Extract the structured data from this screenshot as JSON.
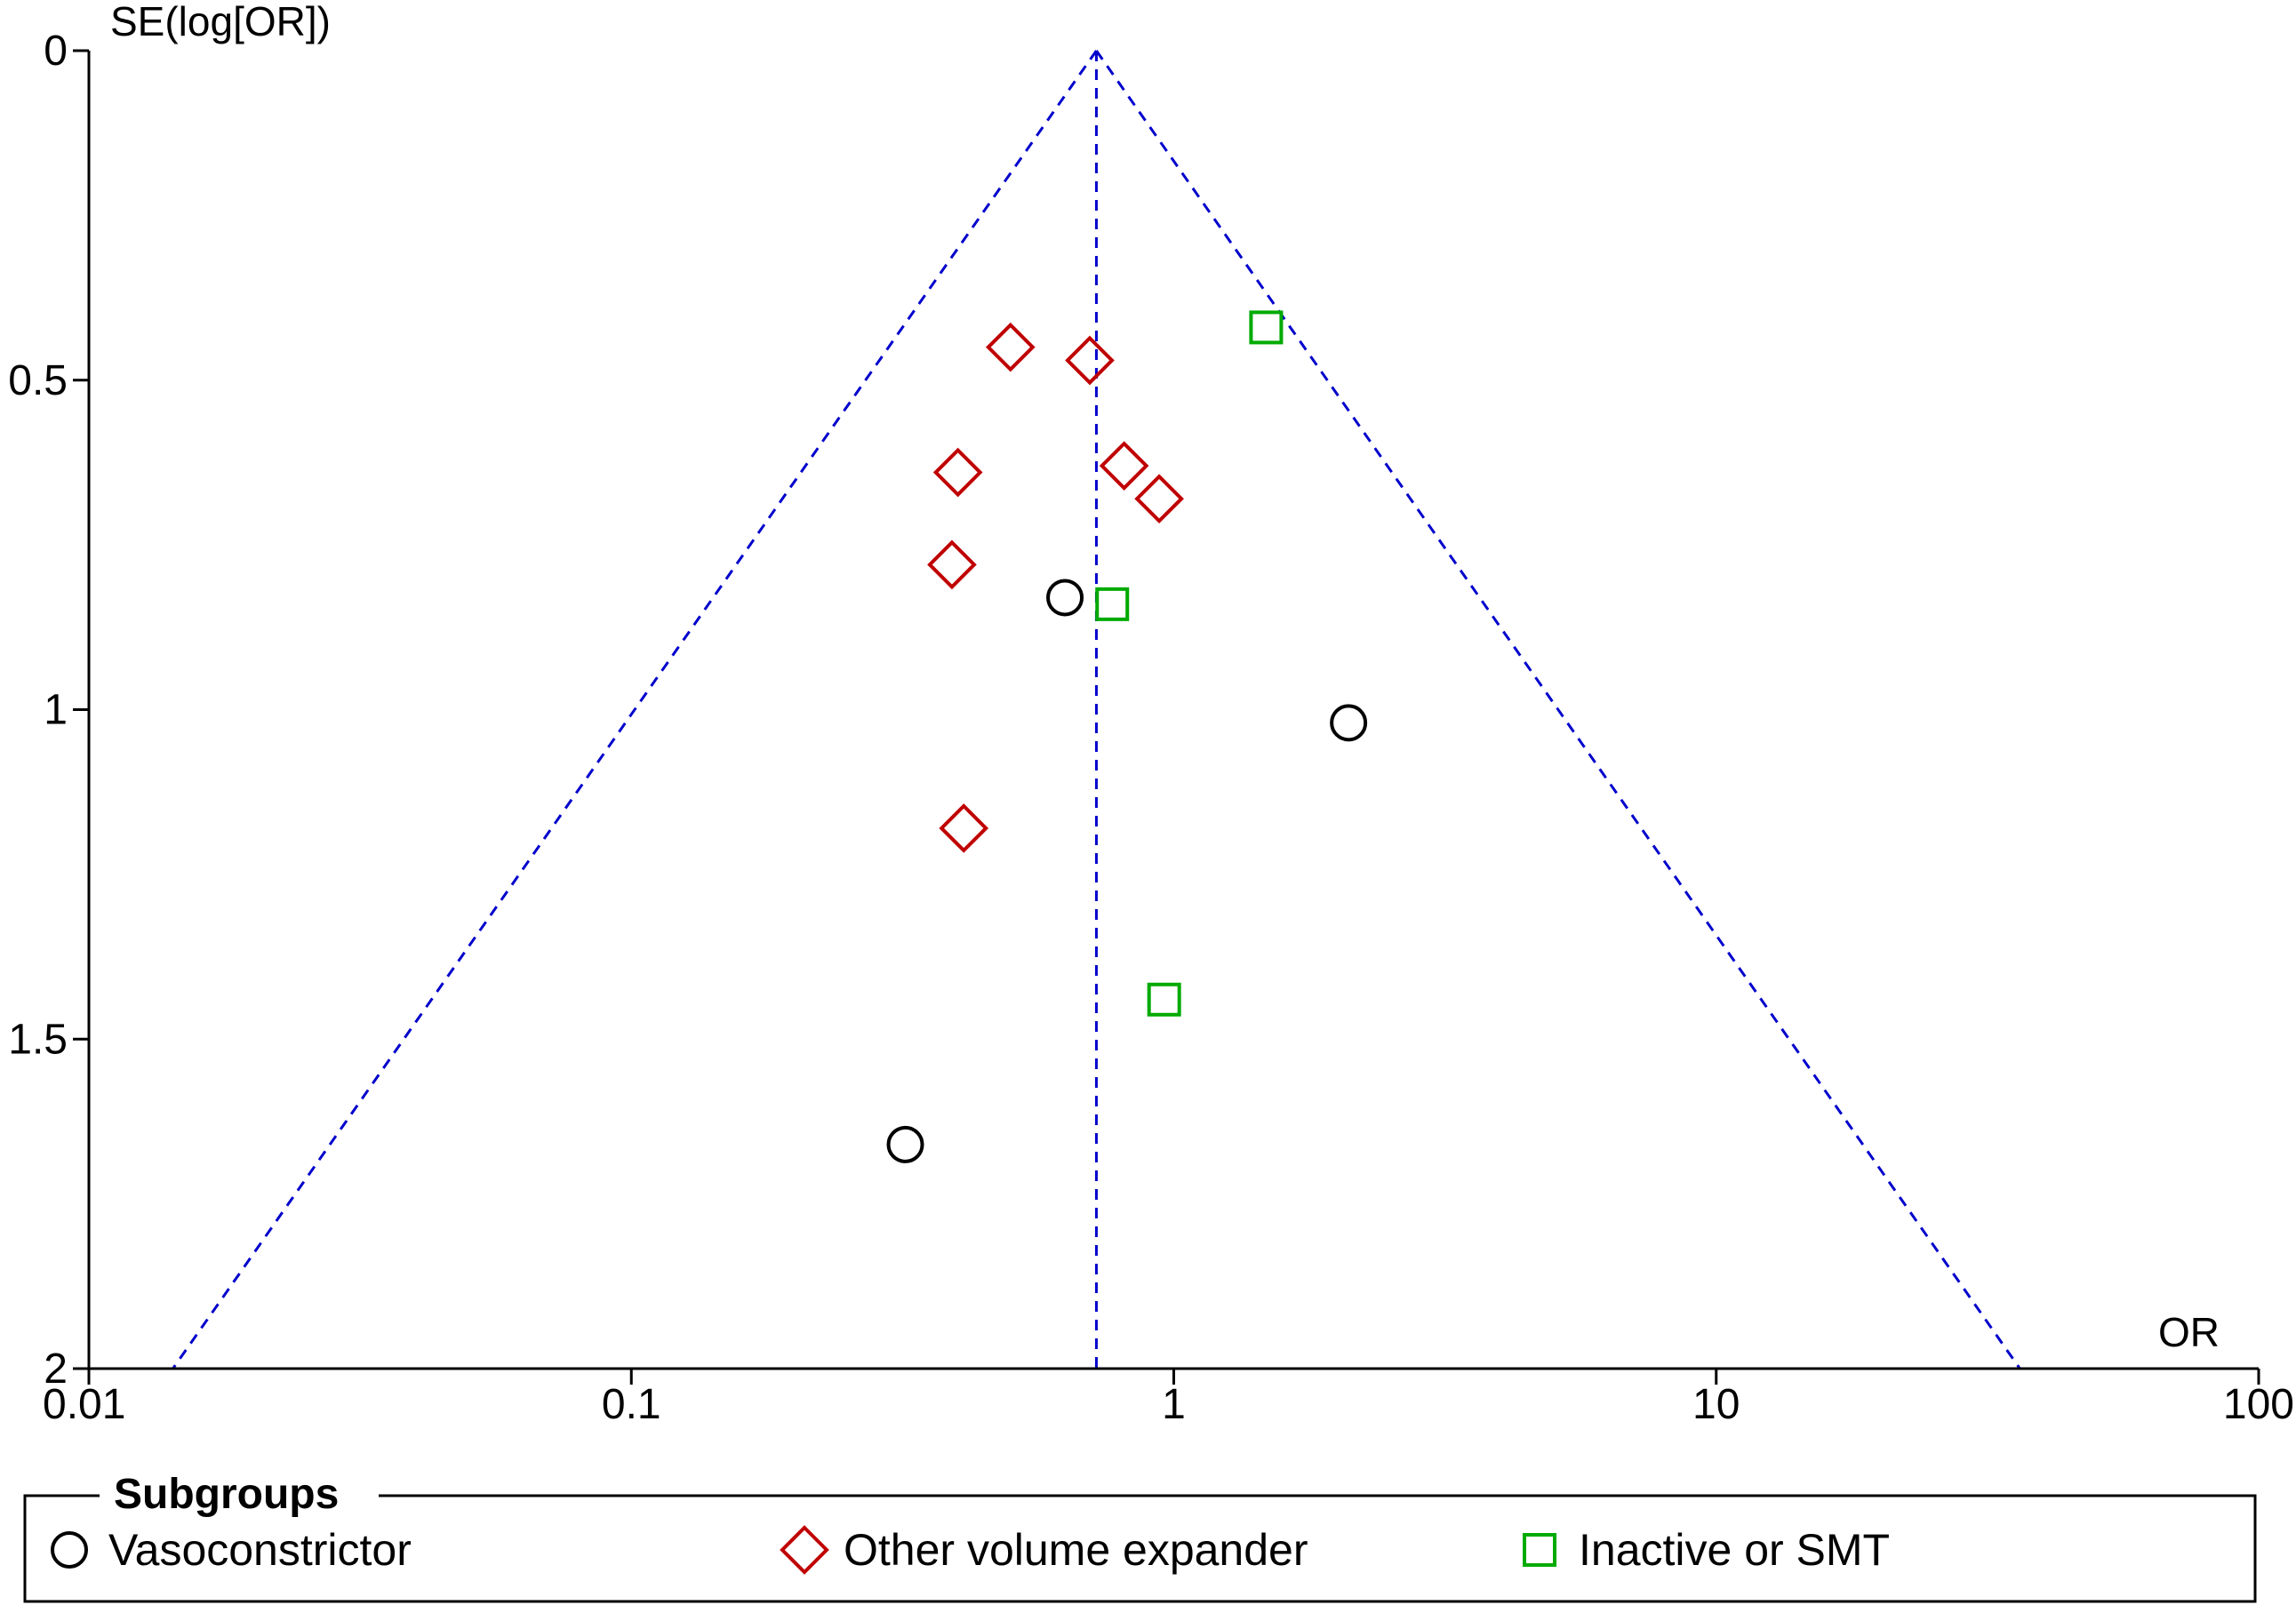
{
  "chart_data": {
    "type": "scatter",
    "chart_kind": "funnel plot",
    "xlabel": "OR",
    "ylabel": "SE(log[OR])",
    "x_scale": "log",
    "xlim": [
      0.01,
      100
    ],
    "x_ticks": [
      0.01,
      0.1,
      1,
      10,
      100
    ],
    "x_tick_labels": [
      "0.01",
      "0.1",
      "1",
      "10",
      "100"
    ],
    "y_reversed": true,
    "ylim": [
      0,
      2
    ],
    "y_ticks": [
      0,
      0.5,
      1,
      1.5,
      2
    ],
    "y_tick_labels": [
      "0",
      "0.5",
      "1",
      "1.5",
      "2"
    ],
    "pooled_or": 0.72,
    "funnel_line_color": "#0000cc",
    "legend": {
      "title": "Subgroups",
      "placement": "bottom"
    },
    "series": [
      {
        "name": "Vasoconstrictor",
        "marker": "circle",
        "color": "#000000",
        "points": [
          {
            "x": 0.63,
            "y": 0.83
          },
          {
            "x": 2.1,
            "y": 1.02
          },
          {
            "x": 0.32,
            "y": 1.66
          }
        ]
      },
      {
        "name": "Other volume expander",
        "marker": "diamond",
        "color": "#c00000",
        "points": [
          {
            "x": 0.5,
            "y": 0.45
          },
          {
            "x": 0.7,
            "y": 0.47
          },
          {
            "x": 0.4,
            "y": 0.64
          },
          {
            "x": 0.81,
            "y": 0.63
          },
          {
            "x": 0.94,
            "y": 0.68
          },
          {
            "x": 0.39,
            "y": 0.78
          },
          {
            "x": 0.41,
            "y": 1.18
          }
        ]
      },
      {
        "name": "Inactive or SMT",
        "marker": "square",
        "color": "#00aa00",
        "points": [
          {
            "x": 1.48,
            "y": 0.42
          },
          {
            "x": 0.77,
            "y": 0.84
          },
          {
            "x": 0.96,
            "y": 1.44
          }
        ]
      }
    ]
  }
}
